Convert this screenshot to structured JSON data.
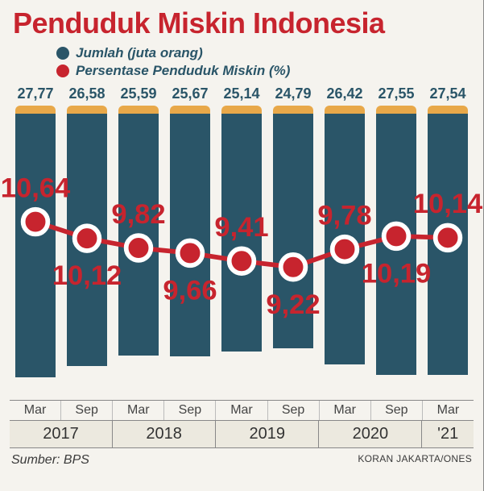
{
  "title": "Penduduk Miskin Indonesia",
  "legend": [
    {
      "color": "#2a5568",
      "label": "Jumlah (juta orang)"
    },
    {
      "color": "#c7242e",
      "label": "Persentase Penduduk Miskin (%)"
    }
  ],
  "chart": {
    "type": "bar+line",
    "background": "#f5f3ee",
    "bar_color": "#2a5568",
    "bar_cap_color": "#e8a849",
    "bar_cap_height": 10,
    "bar_value_color": "#2a5568",
    "bar_value_fontsize": 18,
    "bar_max": 30,
    "bar_width_pct": 78,
    "line_color": "#c7242e",
    "line_width": 3,
    "marker_radius": 8,
    "marker_fill": "#c7242e",
    "marker_stroke": "#ffffff",
    "marker_stroke_width": 3,
    "line_value_color": "#c7242e",
    "line_value_fontsize": 18,
    "line_min": 8,
    "line_max": 12,
    "periods": [
      {
        "month": "Mar",
        "year": "2017",
        "bar": 27.77,
        "line": 10.64,
        "bar_txt": "27,77",
        "line_txt": "10,64",
        "line_pos": "above"
      },
      {
        "month": "Sep",
        "year": "2017",
        "bar": 26.58,
        "line": 10.12,
        "bar_txt": "26,58",
        "line_txt": "10,12",
        "line_pos": "below"
      },
      {
        "month": "Mar",
        "year": "2018",
        "bar": 25.59,
        "line": 9.82,
        "bar_txt": "25,59",
        "line_txt": "9,82",
        "line_pos": "above"
      },
      {
        "month": "Sep",
        "year": "2018",
        "bar": 25.67,
        "line": 9.66,
        "bar_txt": "25,67",
        "line_txt": "9,66",
        "line_pos": "below"
      },
      {
        "month": "Mar",
        "year": "2019",
        "bar": 25.14,
        "line": 9.41,
        "bar_txt": "25,14",
        "line_txt": "9,41",
        "line_pos": "above"
      },
      {
        "month": "Sep",
        "year": "2019",
        "bar": 24.79,
        "line": 9.22,
        "bar_txt": "24,79",
        "line_txt": "9,22",
        "line_pos": "below"
      },
      {
        "month": "Mar",
        "year": "2020",
        "bar": 26.42,
        "line": 9.78,
        "bar_txt": "26,42",
        "line_txt": "9,78",
        "line_pos": "above"
      },
      {
        "month": "Sep",
        "year": "2020",
        "bar": 27.55,
        "line": 10.19,
        "bar_txt": "27,55",
        "line_txt": "10,19",
        "line_pos": "below"
      },
      {
        "month": "Mar",
        "year": "'21",
        "bar": 27.54,
        "line": 10.14,
        "bar_txt": "27,54",
        "line_txt": "10,14",
        "line_pos": "above"
      }
    ],
    "year_groups": [
      {
        "label": "2017",
        "span": 2
      },
      {
        "label": "2018",
        "span": 2
      },
      {
        "label": "2019",
        "span": 2
      },
      {
        "label": "2020",
        "span": 2
      },
      {
        "label": "'21",
        "span": 1
      }
    ]
  },
  "source_label": "Sumber: BPS",
  "credit": "KORAN JAKARTA/ONES"
}
